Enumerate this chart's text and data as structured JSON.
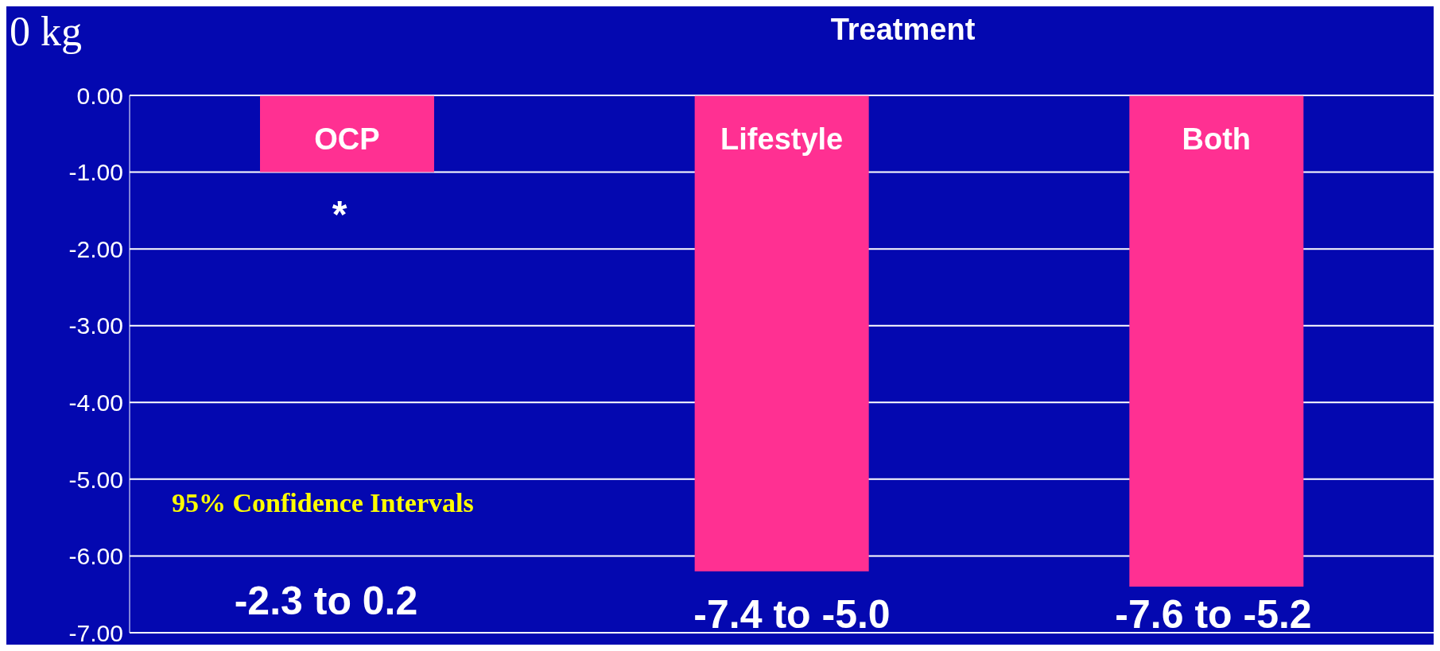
{
  "chart_data": {
    "type": "bar",
    "title": "Treatment",
    "categories": [
      "OCP",
      "Lifestyle",
      "Both"
    ],
    "values": [
      -1.0,
      -6.2,
      -6.4
    ],
    "color": "#ff3092",
    "ylim": [
      -7,
      0
    ],
    "yticks": [
      {
        "value": 0,
        "label": "0.00"
      },
      {
        "value": -1,
        "label": "-1.00"
      },
      {
        "value": -2,
        "label": "-2.00"
      },
      {
        "value": -3,
        "label": "-3.00"
      },
      {
        "value": -4,
        "label": "-4.00"
      },
      {
        "value": -5,
        "label": "-5.00"
      },
      {
        "value": -6,
        "label": "-6.00"
      },
      {
        "value": -7,
        "label": "-7.00"
      }
    ],
    "grid": "y",
    "tick_labels": "y",
    "annotations": [
      "0 kg",
      "95% Confidence Intervals",
      "*",
      "-2.3 to 0.2",
      "-7.4 to -5.0",
      "-7.6 to -5.2"
    ]
  }
}
